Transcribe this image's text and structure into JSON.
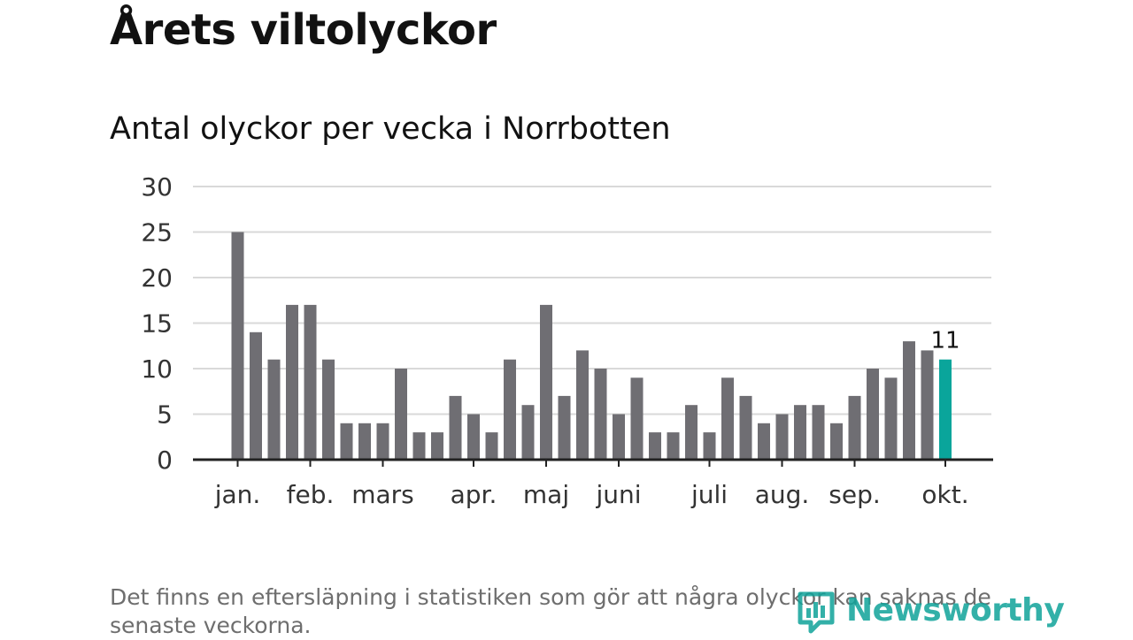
{
  "title": "Årets viltolyckor",
  "subtitle": "Antal olyckor per vecka i Norrbotten",
  "footnote": "Det finns en eftersläpning i statistiken som gör att några olyckor kan saknas de senaste veckorna.",
  "brand": {
    "name": "Newsworthy"
  },
  "colors": {
    "bar": "#6f6e73",
    "highlight": "#0aa59b",
    "grid": "#d9d9d9",
    "axis": "#222222",
    "tick_text": "#333333"
  },
  "chart_data": {
    "type": "bar",
    "title": "Antal olyckor per vecka i Norrbotten",
    "xlabel": "",
    "ylabel": "",
    "ylim": [
      0,
      30
    ],
    "yticks": [
      0,
      5,
      10,
      15,
      20,
      25,
      30
    ],
    "grid": true,
    "weeks": [
      1,
      2,
      3,
      4,
      5,
      6,
      7,
      8,
      9,
      10,
      11,
      12,
      13,
      14,
      15,
      16,
      17,
      18,
      19,
      20,
      21,
      22,
      23,
      24,
      25,
      26,
      27,
      28,
      29,
      30,
      31,
      32,
      33,
      34,
      35,
      36,
      37,
      38,
      39,
      40
    ],
    "values": [
      25,
      14,
      11,
      17,
      17,
      11,
      4,
      4,
      4,
      10,
      3,
      3,
      7,
      5,
      3,
      11,
      6,
      17,
      7,
      12,
      10,
      5,
      9,
      3,
      3,
      6,
      3,
      9,
      7,
      4,
      5,
      6,
      6,
      4,
      7,
      10,
      9,
      13,
      12,
      11
    ],
    "highlight_index": 39,
    "highlight_label": "11",
    "month_labels": [
      {
        "label": "jan.",
        "week": 1
      },
      {
        "label": "feb.",
        "week": 5
      },
      {
        "label": "mars",
        "week": 9
      },
      {
        "label": "apr.",
        "week": 14
      },
      {
        "label": "maj",
        "week": 18
      },
      {
        "label": "juni",
        "week": 22
      },
      {
        "label": "juli",
        "week": 27
      },
      {
        "label": "aug.",
        "week": 31
      },
      {
        "label": "sep.",
        "week": 35
      },
      {
        "label": "okt.",
        "week": 40
      }
    ]
  }
}
